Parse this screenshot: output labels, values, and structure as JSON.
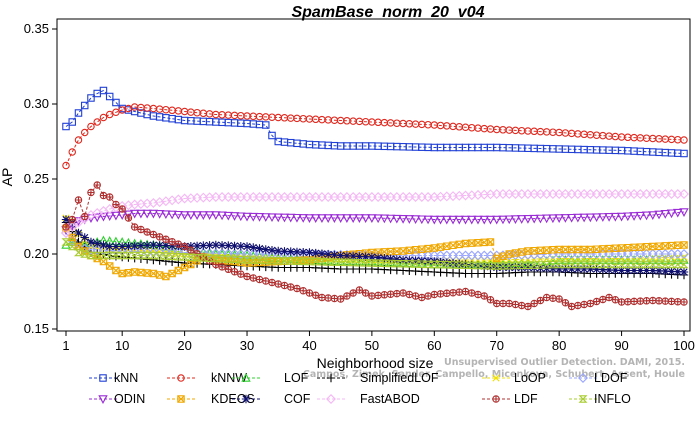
{
  "chart_data": {
    "type": "line",
    "title": "SpamBase_norm_20_v04",
    "xlabel": "Neighborhood size",
    "ylabel": "AP",
    "xlim": [
      1,
      100
    ],
    "ylim": [
      0.15,
      0.35
    ],
    "x_ticks": [
      1,
      10,
      20,
      30,
      40,
      50,
      60,
      70,
      80,
      90,
      100
    ],
    "y_ticks": [
      0.15,
      0.2,
      0.25,
      0.3,
      0.35
    ],
    "grid": false,
    "legend_position": "bottom",
    "credit": "Campos, Zimek, Sander, Campello, Micenkova, Schubert, Assent, Houle",
    "credit_line1": "Unsupervised Outlier Detection. DAMI, 2015.",
    "series": [
      {
        "name": "kNN",
        "color": "#1f3fd6",
        "marker": "square",
        "points": [
          [
            1,
            0.285
          ],
          [
            2,
            0.288
          ],
          [
            3,
            0.294
          ],
          [
            4,
            0.299
          ],
          [
            5,
            0.304
          ],
          [
            6,
            0.307
          ],
          [
            7,
            0.309
          ],
          [
            8,
            0.305
          ],
          [
            9,
            0.301
          ],
          [
            10,
            0.297
          ],
          [
            12,
            0.295
          ],
          [
            15,
            0.292
          ],
          [
            20,
            0.289
          ],
          [
            25,
            0.288
          ],
          [
            30,
            0.287
          ],
          [
            33,
            0.286
          ],
          [
            34,
            0.279
          ],
          [
            35,
            0.275
          ],
          [
            40,
            0.273
          ],
          [
            45,
            0.272
          ],
          [
            50,
            0.272
          ],
          [
            60,
            0.271
          ],
          [
            70,
            0.271
          ],
          [
            80,
            0.27
          ],
          [
            90,
            0.269
          ],
          [
            100,
            0.267
          ]
        ]
      },
      {
        "name": "kNNW",
        "color": "#e0281e",
        "marker": "circle",
        "points": [
          [
            1,
            0.259
          ],
          [
            2,
            0.268
          ],
          [
            3,
            0.276
          ],
          [
            4,
            0.281
          ],
          [
            5,
            0.285
          ],
          [
            6,
            0.288
          ],
          [
            7,
            0.291
          ],
          [
            8,
            0.293
          ],
          [
            10,
            0.296
          ],
          [
            12,
            0.298
          ],
          [
            15,
            0.297
          ],
          [
            20,
            0.295
          ],
          [
            25,
            0.293
          ],
          [
            30,
            0.292
          ],
          [
            40,
            0.29
          ],
          [
            50,
            0.288
          ],
          [
            60,
            0.286
          ],
          [
            70,
            0.283
          ],
          [
            80,
            0.281
          ],
          [
            90,
            0.278
          ],
          [
            100,
            0.276
          ]
        ]
      },
      {
        "name": "LOF",
        "color": "#2fd02f",
        "marker": "triangle",
        "points": [
          [
            1,
            0.206
          ],
          [
            2,
            0.208
          ],
          [
            3,
            0.205
          ],
          [
            5,
            0.207
          ],
          [
            7,
            0.209
          ],
          [
            10,
            0.208
          ],
          [
            12,
            0.207
          ],
          [
            15,
            0.206
          ],
          [
            20,
            0.203
          ],
          [
            25,
            0.2
          ],
          [
            30,
            0.199
          ],
          [
            35,
            0.197
          ],
          [
            40,
            0.196
          ],
          [
            45,
            0.195
          ],
          [
            50,
            0.195
          ],
          [
            55,
            0.194
          ],
          [
            60,
            0.193
          ],
          [
            65,
            0.193
          ],
          [
            70,
            0.193
          ],
          [
            75,
            0.194
          ],
          [
            80,
            0.196
          ],
          [
            85,
            0.196
          ],
          [
            90,
            0.196
          ],
          [
            95,
            0.196
          ],
          [
            100,
            0.196
          ]
        ]
      },
      {
        "name": "SimplifiedLOF",
        "color": "#000000",
        "marker": "plus",
        "points": [
          [
            1,
            0.221
          ],
          [
            2,
            0.215
          ],
          [
            3,
            0.208
          ],
          [
            5,
            0.201
          ],
          [
            8,
            0.199
          ],
          [
            10,
            0.198
          ],
          [
            15,
            0.196
          ],
          [
            20,
            0.194
          ],
          [
            25,
            0.193
          ],
          [
            30,
            0.192
          ],
          [
            35,
            0.191
          ],
          [
            40,
            0.191
          ],
          [
            45,
            0.19
          ],
          [
            50,
            0.19
          ],
          [
            55,
            0.189
          ],
          [
            60,
            0.188
          ],
          [
            65,
            0.187
          ],
          [
            70,
            0.187
          ],
          [
            75,
            0.188
          ],
          [
            80,
            0.188
          ],
          [
            85,
            0.187
          ],
          [
            90,
            0.187
          ],
          [
            95,
            0.187
          ],
          [
            100,
            0.186
          ]
        ]
      },
      {
        "name": "LoOP",
        "color": "#f0e000",
        "marker": "x",
        "points": [
          [
            1,
            0.224
          ],
          [
            2,
            0.222
          ],
          [
            3,
            0.213
          ],
          [
            5,
            0.205
          ],
          [
            8,
            0.203
          ],
          [
            10,
            0.203
          ],
          [
            15,
            0.202
          ],
          [
            20,
            0.2
          ],
          [
            25,
            0.199
          ],
          [
            30,
            0.198
          ],
          [
            40,
            0.197
          ],
          [
            50,
            0.196
          ],
          [
            60,
            0.196
          ],
          [
            70,
            0.196
          ],
          [
            80,
            0.197
          ],
          [
            90,
            0.197
          ],
          [
            100,
            0.198
          ]
        ]
      },
      {
        "name": "LDOF",
        "color": "#9aa6ff",
        "marker": "diamond",
        "points": [
          [
            1,
            0.214
          ],
          [
            2,
            0.209
          ],
          [
            3,
            0.204
          ],
          [
            5,
            0.203
          ],
          [
            10,
            0.202
          ],
          [
            15,
            0.201
          ],
          [
            20,
            0.201
          ],
          [
            30,
            0.2
          ],
          [
            40,
            0.2
          ],
          [
            50,
            0.199
          ],
          [
            60,
            0.199
          ],
          [
            70,
            0.199
          ],
          [
            80,
            0.2
          ],
          [
            90,
            0.2
          ],
          [
            100,
            0.2
          ]
        ]
      },
      {
        "name": "ODIN",
        "color": "#9a2bd6",
        "marker": "triangle-down",
        "points": [
          [
            1,
            0.216
          ],
          [
            2,
            0.219
          ],
          [
            3,
            0.222
          ],
          [
            5,
            0.224
          ],
          [
            7,
            0.225
          ],
          [
            10,
            0.226
          ],
          [
            12,
            0.227
          ],
          [
            15,
            0.227
          ],
          [
            20,
            0.226
          ],
          [
            25,
            0.226
          ],
          [
            30,
            0.225
          ],
          [
            40,
            0.224
          ],
          [
            50,
            0.224
          ],
          [
            60,
            0.223
          ],
          [
            70,
            0.223
          ],
          [
            80,
            0.224
          ],
          [
            90,
            0.225
          ],
          [
            95,
            0.226
          ],
          [
            100,
            0.228
          ]
        ]
      },
      {
        "name": "KDEOS",
        "color": "#f0a800",
        "marker": "square-x",
        "points": [
          [
            1,
            0.217
          ],
          [
            2,
            0.211
          ],
          [
            3,
            0.205
          ],
          [
            5,
            0.199
          ],
          [
            7,
            0.195
          ],
          [
            9,
            0.189
          ],
          [
            10,
            0.187
          ],
          [
            12,
            0.188
          ],
          [
            15,
            0.187
          ],
          [
            17,
            0.185
          ],
          [
            19,
            0.189
          ],
          [
            21,
            0.193
          ],
          [
            23,
            0.198
          ],
          [
            25,
            0.196
          ],
          [
            28,
            0.195
          ],
          [
            30,
            0.194
          ],
          [
            35,
            0.195
          ],
          [
            40,
            0.196
          ],
          [
            45,
            0.199
          ],
          [
            50,
            0.201
          ],
          [
            55,
            0.202
          ],
          [
            60,
            0.204
          ],
          [
            65,
            0.207
          ],
          [
            69,
            0.208
          ],
          [
            70,
            0.197
          ],
          [
            72,
            0.2
          ],
          [
            75,
            0.202
          ],
          [
            80,
            0.203
          ],
          [
            85,
            0.203
          ],
          [
            90,
            0.204
          ],
          [
            95,
            0.205
          ],
          [
            100,
            0.206
          ]
        ]
      },
      {
        "name": "COF",
        "color": "#101070",
        "marker": "asterisk",
        "points": [
          [
            1,
            0.223
          ],
          [
            2,
            0.221
          ],
          [
            3,
            0.214
          ],
          [
            5,
            0.208
          ],
          [
            8,
            0.205
          ],
          [
            10,
            0.205
          ],
          [
            15,
            0.206
          ],
          [
            20,
            0.205
          ],
          [
            25,
            0.206
          ],
          [
            30,
            0.205
          ],
          [
            33,
            0.203
          ],
          [
            35,
            0.202
          ],
          [
            40,
            0.201
          ],
          [
            45,
            0.199
          ],
          [
            50,
            0.198
          ],
          [
            55,
            0.196
          ],
          [
            60,
            0.195
          ],
          [
            65,
            0.193
          ],
          [
            70,
            0.191
          ],
          [
            75,
            0.191
          ],
          [
            80,
            0.19
          ],
          [
            85,
            0.19
          ],
          [
            90,
            0.189
          ],
          [
            95,
            0.189
          ],
          [
            100,
            0.188
          ]
        ]
      },
      {
        "name": "FastABOD",
        "color": "#f4b8f4",
        "marker": "diamond",
        "points": [
          [
            1,
            0.214
          ],
          [
            2,
            0.218
          ],
          [
            3,
            0.221
          ],
          [
            5,
            0.226
          ],
          [
            8,
            0.23
          ],
          [
            10,
            0.232
          ],
          [
            12,
            0.233
          ],
          [
            15,
            0.234
          ],
          [
            20,
            0.237
          ],
          [
            25,
            0.238
          ],
          [
            30,
            0.238
          ],
          [
            40,
            0.238
          ],
          [
            50,
            0.238
          ],
          [
            60,
            0.238
          ],
          [
            65,
            0.239
          ],
          [
            70,
            0.24
          ],
          [
            75,
            0.24
          ],
          [
            80,
            0.24
          ],
          [
            85,
            0.24
          ],
          [
            90,
            0.24
          ],
          [
            95,
            0.24
          ],
          [
            100,
            0.24
          ]
        ]
      },
      {
        "name": "LDF",
        "color": "#b03030",
        "marker": "circle-plus",
        "points": [
          [
            1,
            0.218
          ],
          [
            2,
            0.223
          ],
          [
            3,
            0.236
          ],
          [
            4,
            0.225
          ],
          [
            5,
            0.241
          ],
          [
            6,
            0.246
          ],
          [
            7,
            0.239
          ],
          [
            8,
            0.238
          ],
          [
            9,
            0.233
          ],
          [
            10,
            0.23
          ],
          [
            12,
            0.218
          ],
          [
            15,
            0.213
          ],
          [
            20,
            0.205
          ],
          [
            25,
            0.193
          ],
          [
            30,
            0.185
          ],
          [
            35,
            0.18
          ],
          [
            38,
            0.177
          ],
          [
            40,
            0.174
          ],
          [
            42,
            0.171
          ],
          [
            45,
            0.17
          ],
          [
            48,
            0.176
          ],
          [
            50,
            0.172
          ],
          [
            55,
            0.174
          ],
          [
            58,
            0.171
          ],
          [
            60,
            0.173
          ],
          [
            65,
            0.175
          ],
          [
            68,
            0.172
          ],
          [
            70,
            0.167
          ],
          [
            72,
            0.167
          ],
          [
            75,
            0.165
          ],
          [
            78,
            0.171
          ],
          [
            80,
            0.17
          ],
          [
            82,
            0.165
          ],
          [
            85,
            0.167
          ],
          [
            88,
            0.171
          ],
          [
            90,
            0.168
          ],
          [
            95,
            0.169
          ],
          [
            100,
            0.168
          ]
        ]
      },
      {
        "name": "INFLO",
        "color": "#a8cc30",
        "marker": "hourglass",
        "points": [
          [
            1,
            0.208
          ],
          [
            2,
            0.205
          ],
          [
            3,
            0.201
          ],
          [
            5,
            0.199
          ],
          [
            8,
            0.199
          ],
          [
            10,
            0.199
          ],
          [
            15,
            0.199
          ],
          [
            20,
            0.198
          ],
          [
            25,
            0.197
          ],
          [
            30,
            0.196
          ],
          [
            40,
            0.195
          ],
          [
            50,
            0.194
          ],
          [
            60,
            0.193
          ],
          [
            70,
            0.192
          ],
          [
            80,
            0.193
          ],
          [
            90,
            0.193
          ],
          [
            100,
            0.193
          ]
        ]
      }
    ],
    "legend_rows": [
      [
        "kNN",
        "kNNW",
        "LOF",
        "SimplifiedLOF",
        "LoOP",
        "LDOF"
      ],
      [
        "ODIN",
        "KDEOS",
        "COF",
        "FastABOD",
        "LDF",
        "INFLO"
      ]
    ]
  }
}
